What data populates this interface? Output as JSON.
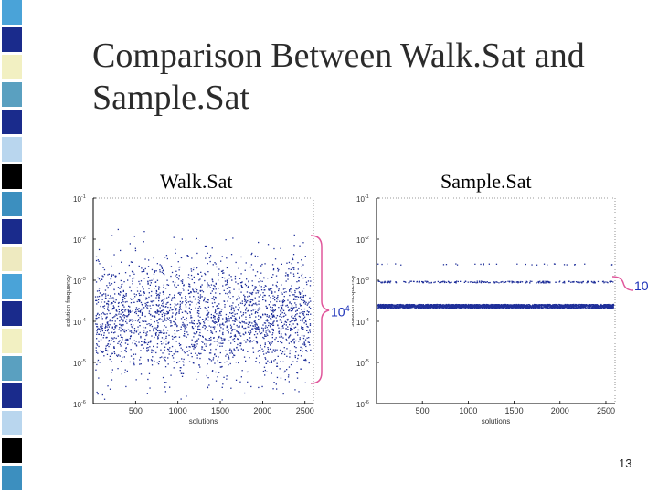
{
  "slide": {
    "title_line1": "Comparison Between Walk.Sat and",
    "title_line2": "Sample.Sat",
    "number": "13"
  },
  "colors": {
    "point": "#1f2f9a",
    "axis": "#000000",
    "bracket": "#e0569b",
    "annotation_text": "#1a2fb8",
    "strip": [
      "#4aa3d8",
      "#1a2b8c",
      "#f2f0c2",
      "#5aa0c0",
      "#1a2b8c",
      "#b9d6ee",
      "#000000",
      "#3c8fbf",
      "#1a2b8c",
      "#eeeac0"
    ]
  },
  "annotations": {
    "left_base": "10",
    "left_exp": "4",
    "right_text": "10"
  },
  "chart_data": [
    {
      "type": "scatter",
      "title": "Walk.Sat",
      "xlabel": "solutions",
      "ylabel": "solution frequency",
      "x_ticks": [
        "500",
        "1000",
        "1500",
        "2000",
        "2500"
      ],
      "y_ticks": [
        {
          "base": "10",
          "exp": "-1"
        },
        {
          "base": "10",
          "exp": "-2"
        },
        {
          "base": "10",
          "exp": "-3"
        },
        {
          "base": "10",
          "exp": "-4"
        },
        {
          "base": "10",
          "exp": "-5"
        },
        {
          "base": "10",
          "exp": "-6"
        }
      ],
      "xlim": [
        0,
        2600
      ],
      "ylim": [
        1e-06,
        0.1
      ],
      "yscale": "log",
      "distribution": "dense cloud spread roughly between 1e-6 and 1e-2, densest near 1e-4"
    },
    {
      "type": "scatter",
      "title": "Sample.Sat",
      "xlabel": "solutions",
      "ylabel": "solution frequency",
      "x_ticks": [
        "500",
        "1000",
        "1500",
        "2000",
        "2500"
      ],
      "y_ticks": [
        {
          "base": "10",
          "exp": "-1"
        },
        {
          "base": "10",
          "exp": "-2"
        },
        {
          "base": "10",
          "exp": "-3"
        },
        {
          "base": "10",
          "exp": "-4"
        },
        {
          "base": "10",
          "exp": "-5"
        },
        {
          "base": "10",
          "exp": "-6"
        }
      ],
      "xlim": [
        0,
        2600
      ],
      "ylim": [
        1e-06,
        0.1
      ],
      "yscale": "log",
      "distribution": "tight dense band near 4e-4, sparse row near 1e-3, few points near 2e-3"
    }
  ]
}
